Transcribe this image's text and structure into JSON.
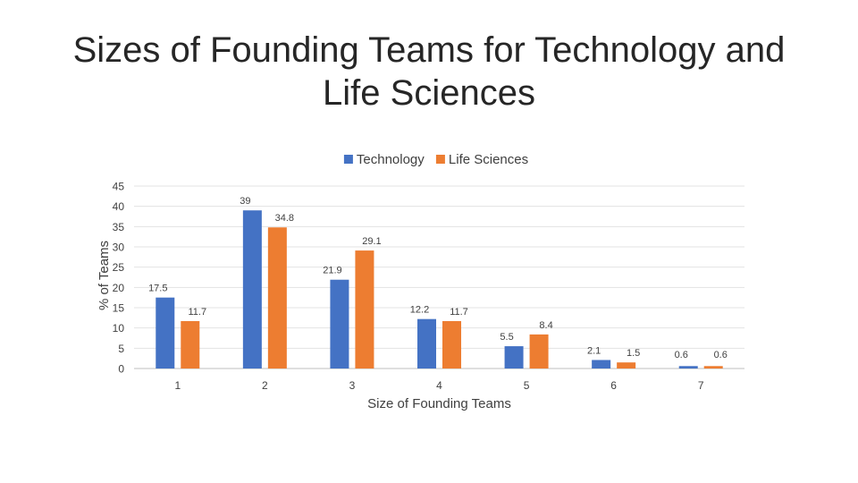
{
  "slide": {
    "title_line1": "Sizes of Founding Teams for Technology and",
    "title_line2": "Life Sciences"
  },
  "chart_data": {
    "type": "bar",
    "title": "Sizes of Founding Teams for Technology and Life Sciences",
    "xlabel": "Size of Founding Teams",
    "ylabel": "% of Teams",
    "categories": [
      "1",
      "2",
      "3",
      "4",
      "5",
      "6",
      "7"
    ],
    "series": [
      {
        "name": "Technology",
        "color": "#4472C4",
        "values": [
          17.5,
          39,
          21.9,
          12.2,
          5.5,
          2.1,
          0.6
        ]
      },
      {
        "name": "Life Sciences",
        "color": "#ED7D31",
        "values": [
          11.7,
          34.8,
          29.1,
          11.7,
          8.4,
          1.5,
          0.6
        ]
      }
    ],
    "ylim": [
      0,
      45
    ],
    "yticks": [
      0,
      5,
      10,
      15,
      20,
      25,
      30,
      35,
      40,
      45
    ],
    "grid": true,
    "legend_position": "top",
    "data_labels": true
  }
}
